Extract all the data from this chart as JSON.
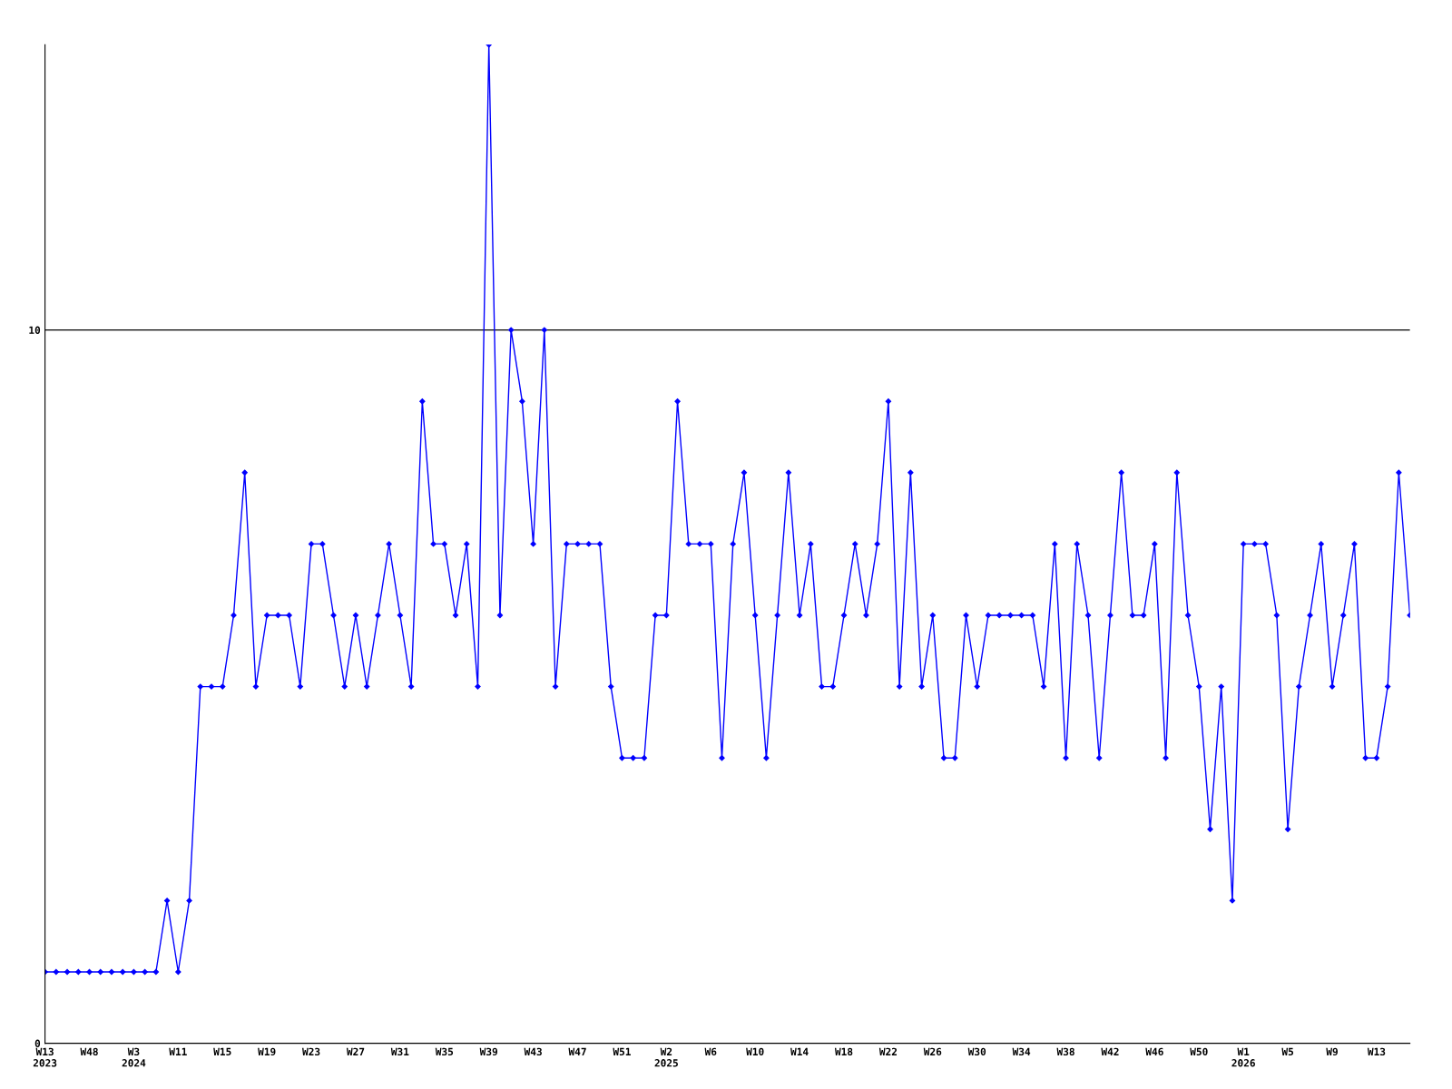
{
  "chart_data": {
    "type": "line",
    "categories": [
      "W13\n2023",
      null,
      null,
      null,
      "W48",
      null,
      null,
      null,
      "W3\n2024",
      null,
      null,
      null,
      "W11",
      null,
      null,
      null,
      "W15",
      null,
      null,
      null,
      "W19",
      null,
      null,
      null,
      "W23",
      null,
      null,
      null,
      "W27",
      null,
      null,
      null,
      "W31",
      null,
      null,
      null,
      "W35",
      null,
      null,
      null,
      "W39",
      null,
      null,
      null,
      "W43",
      null,
      null,
      null,
      "W47",
      null,
      null,
      null,
      "W51",
      null,
      null,
      null,
      "W2\n2025",
      null,
      null,
      null,
      "W6",
      null,
      null,
      null,
      "W10",
      null,
      null,
      null,
      "W14",
      null,
      null,
      null,
      "W18",
      null,
      null,
      null,
      "W22",
      null,
      null,
      null,
      "W26",
      null,
      null,
      null,
      "W30",
      null,
      null,
      null,
      "W34",
      null,
      null,
      null,
      "W38",
      null,
      null,
      null,
      "W42",
      null,
      null,
      null,
      "W46",
      null,
      null,
      null,
      "W50",
      null,
      null,
      null,
      "W1\n2026",
      null,
      null,
      null,
      "W5",
      null,
      null,
      null,
      "W9",
      null,
      null,
      null,
      "W13",
      null,
      null,
      null
    ],
    "series": [
      {
        "color": "#0000ff",
        "values": [
          1,
          1,
          1,
          1,
          1,
          1,
          1,
          1,
          1,
          1,
          1,
          2,
          1,
          2,
          5,
          5,
          5,
          6,
          8,
          5,
          6,
          6,
          6,
          5,
          7,
          7,
          6,
          5,
          6,
          5,
          6,
          7,
          6,
          5,
          9,
          7,
          7,
          6,
          7,
          5,
          14,
          6,
          10,
          9,
          7,
          10,
          5,
          7,
          7,
          7,
          7,
          5,
          4,
          4,
          4,
          6,
          6,
          9,
          7,
          7,
          7,
          4,
          7,
          8,
          6,
          4,
          6,
          8,
          6,
          7,
          5,
          5,
          6,
          7,
          6,
          7,
          9,
          5,
          8,
          5,
          6,
          4,
          4,
          6,
          5,
          6,
          6,
          6,
          6,
          6,
          5,
          7,
          4,
          7,
          6,
          4,
          6,
          8,
          6,
          6,
          7,
          4,
          8,
          6,
          5,
          3,
          5,
          2,
          7,
          7,
          7,
          6,
          3,
          5,
          6,
          7,
          5,
          6,
          7,
          4,
          4,
          5,
          8,
          6
        ]
      }
    ],
    "ylim": [
      0,
      14
    ],
    "yticks": [
      0,
      10
    ],
    "grid": "y",
    "marker": "diamond",
    "line_style": "solid"
  }
}
